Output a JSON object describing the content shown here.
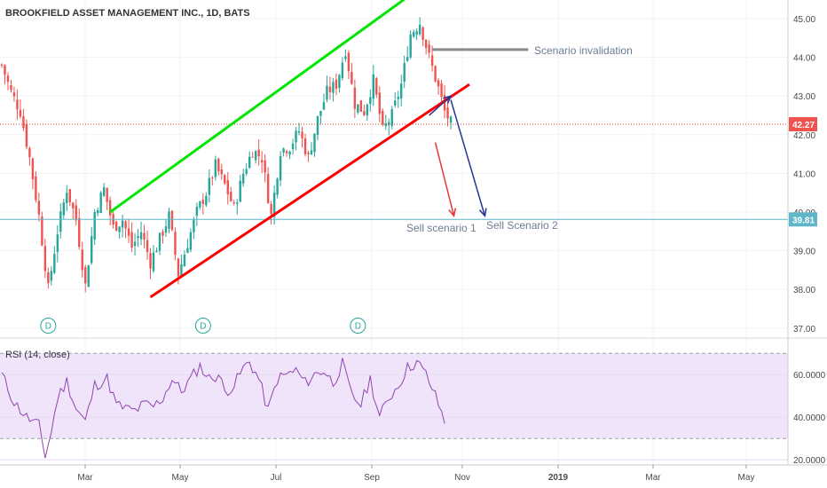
{
  "title": "BROOKFIELD ASSET MANAGEMENT INC., 1D, BATS",
  "colors": {
    "up": "#26a69a",
    "down": "#ef5350",
    "channel_upper": "#00e600",
    "channel_lower": "#ff0000",
    "arrow_red": "#e53935",
    "arrow_blue": "#283593",
    "rsi_line": "#8e44ad",
    "rsi_band": "#f0e4fb",
    "hline_current": "#e53935",
    "hline_target": "#5fb5c9",
    "invalidation": "#8a8a8a",
    "current_badge": "#ef5350",
    "target_badge": "#5fb5c9"
  },
  "annotations": {
    "scenario_invalidation": "Scenario invalidation",
    "sell_scenario_1": "Sell scenario 1",
    "sell_scenario_2": "Sell Scenario 2"
  },
  "current_price_label": "42.27",
  "target_price_label": "39.81",
  "dividend_marker": "D",
  "rsi_label": "RSI (14, close)",
  "chart_data": [
    {
      "type": "candlestick",
      "title": "BROOKFIELD ASSET MANAGEMENT INC., 1D, BATS",
      "x_tick_labels": [
        "Mar",
        "May",
        "Jul",
        "Sep",
        "Nov",
        "2019",
        "Mar",
        "May"
      ],
      "y_tick_labels": [
        "45.00",
        "44.00",
        "43.00",
        "42.00",
        "41.00",
        "40.00",
        "39.00",
        "38.00",
        "37.00"
      ],
      "ylim": [
        36.9,
        45.3
      ],
      "close_path": [
        [
          0,
          43.8
        ],
        [
          3,
          43.1
        ],
        [
          6,
          42.6
        ],
        [
          9,
          41.4
        ],
        [
          12,
          39.9
        ],
        [
          15,
          38.0
        ],
        [
          18,
          39.5
        ],
        [
          21,
          40.6
        ],
        [
          24,
          39.8
        ],
        [
          27,
          38.1
        ],
        [
          30,
          40.0
        ],
        [
          33,
          40.6
        ],
        [
          36,
          39.6
        ],
        [
          39,
          39.8
        ],
        [
          42,
          39.1
        ],
        [
          45,
          39.5
        ],
        [
          48,
          38.7
        ],
        [
          51,
          39.3
        ],
        [
          54,
          39.9
        ],
        [
          57,
          38.4
        ],
        [
          60,
          39.2
        ],
        [
          63,
          40.0
        ],
        [
          66,
          40.5
        ],
        [
          69,
          41.2
        ],
        [
          72,
          40.7
        ],
        [
          75,
          40.1
        ],
        [
          78,
          41.0
        ],
        [
          81,
          41.6
        ],
        [
          84,
          41.4
        ],
        [
          87,
          39.9
        ],
        [
          90,
          41.6
        ],
        [
          93,
          41.7
        ],
        [
          96,
          42.1
        ],
        [
          99,
          41.4
        ],
        [
          102,
          42.4
        ],
        [
          105,
          43.1
        ],
        [
          108,
          43.3
        ],
        [
          111,
          44.2
        ],
        [
          114,
          42.8
        ],
        [
          117,
          42.6
        ],
        [
          120,
          43.4
        ],
        [
          123,
          42.1
        ],
        [
          126,
          42.5
        ],
        [
          129,
          43.3
        ],
        [
          132,
          44.6
        ],
        [
          135,
          44.9
        ],
        [
          138,
          44.0
        ],
        [
          141,
          43.2
        ],
        [
          143,
          42.6
        ],
        [
          145,
          42.3
        ]
      ],
      "dividend_days": [
        15,
        65,
        115
      ],
      "current_price": 42.27,
      "target_price": 39.81,
      "invalidation_price": 44.2,
      "channel_upper": [
        [
          35,
          40.0
        ],
        [
          130,
          45.5
        ]
      ],
      "channel_lower": [
        [
          48,
          37.8
        ],
        [
          151,
          43.3
        ]
      ],
      "arrows": {
        "blue_up": [
          [
            138,
            42.5
          ],
          [
            145,
            43.0
          ]
        ],
        "blue_down": [
          [
            145,
            42.9
          ],
          [
            156,
            39.9
          ]
        ],
        "red_down": [
          [
            140,
            41.8
          ],
          [
            146,
            39.9
          ]
        ]
      },
      "rsi": {
        "label": "RSI (14, close)",
        "y_tick_labels": [
          "60.0000",
          "40.0000",
          "20.0000"
        ],
        "ylim": [
          18,
          68
        ],
        "bands": [
          30,
          70
        ],
        "path": [
          [
            0,
            60
          ],
          [
            4,
            47
          ],
          [
            8,
            40
          ],
          [
            12,
            36
          ],
          [
            14,
            22
          ],
          [
            16,
            33
          ],
          [
            18,
            49
          ],
          [
            21,
            57
          ],
          [
            24,
            44
          ],
          [
            27,
            38
          ],
          [
            30,
            55
          ],
          [
            34,
            58
          ],
          [
            37,
            46
          ],
          [
            40,
            44
          ],
          [
            43,
            43
          ],
          [
            46,
            46
          ],
          [
            49,
            45
          ],
          [
            52,
            49
          ],
          [
            55,
            58
          ],
          [
            58,
            52
          ],
          [
            61,
            58
          ],
          [
            64,
            64
          ],
          [
            67,
            58
          ],
          [
            70,
            60
          ],
          [
            72,
            52
          ],
          [
            75,
            55
          ],
          [
            78,
            63
          ],
          [
            80,
            66
          ],
          [
            83,
            58
          ],
          [
            86,
            43
          ],
          [
            89,
            58
          ],
          [
            92,
            60
          ],
          [
            95,
            62
          ],
          [
            98,
            56
          ],
          [
            101,
            60
          ],
          [
            104,
            62
          ],
          [
            107,
            56
          ],
          [
            110,
            65
          ],
          [
            113,
            50
          ],
          [
            116,
            46
          ],
          [
            119,
            58
          ],
          [
            122,
            40
          ],
          [
            125,
            49
          ],
          [
            128,
            55
          ],
          [
            131,
            63
          ],
          [
            134,
            66
          ],
          [
            137,
            60
          ],
          [
            140,
            50
          ],
          [
            143,
            38
          ]
        ]
      }
    }
  ]
}
